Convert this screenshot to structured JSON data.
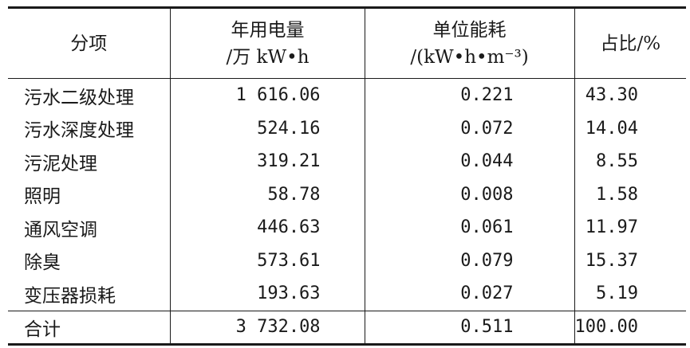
{
  "headers": {
    "item": "分项",
    "annual_power_line1": "年用电量",
    "annual_power_line2": "/万 kW•h",
    "unit_energy_line1": "单位能耗",
    "unit_energy_line2": "/(kW•h•m⁻³)",
    "share": "占比/%"
  },
  "rows": [
    {
      "item": "污水二级处理",
      "annual_power": "1 616.06",
      "unit_energy": "0.221",
      "share": "43.30"
    },
    {
      "item": "污水深度处理",
      "annual_power": "524.16",
      "unit_energy": "0.072",
      "share": "14.04"
    },
    {
      "item": "污泥处理",
      "annual_power": "319.21",
      "unit_energy": "0.044",
      "share": "8.55"
    },
    {
      "item": "照明",
      "annual_power": "58.78",
      "unit_energy": "0.008",
      "share": "1.58"
    },
    {
      "item": "通风空调",
      "annual_power": "446.63",
      "unit_energy": "0.061",
      "share": "11.97"
    },
    {
      "item": "除臭",
      "annual_power": "573.61",
      "unit_energy": "0.079",
      "share": "15.37"
    },
    {
      "item": "变压器损耗",
      "annual_power": "193.63",
      "unit_energy": "0.027",
      "share": "5.19"
    }
  ],
  "total": {
    "item": "合计",
    "annual_power": "3 732.08",
    "unit_energy": "0.511",
    "share": "100.00"
  }
}
